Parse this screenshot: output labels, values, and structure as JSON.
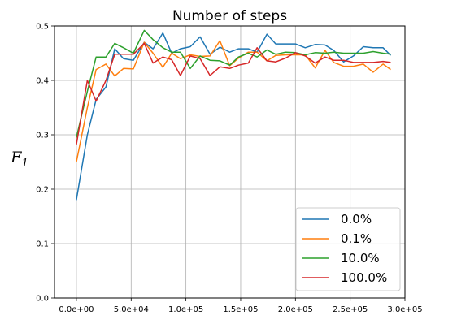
{
  "chart_data": {
    "type": "line",
    "title": "Number of steps",
    "xlabel": "",
    "ylabel": "F",
    "ylabel_sub": "1",
    "xlim": [
      -20000,
      300000
    ],
    "ylim": [
      0.0,
      0.5
    ],
    "grid": true,
    "legend_placement": "bottom-right",
    "x_ticks": [
      0,
      50000,
      100000,
      150000,
      200000,
      250000,
      300000
    ],
    "x_tick_labels": [
      "0.0e+00",
      "5.0e+04",
      "1.0e+05",
      "1.5e+05",
      "2.0e+05",
      "2.5e+05",
      "3.0e+05"
    ],
    "y_ticks": [
      0.0,
      0.1,
      0.2,
      0.3,
      0.4,
      0.5
    ],
    "y_tick_labels": [
      "0.0",
      "0.1",
      "0.2",
      "0.3",
      "0.4",
      "0.5"
    ],
    "x": [
      0,
      10000,
      18000,
      27000,
      35000,
      43000,
      52000,
      62000,
      70000,
      79000,
      87000,
      95000,
      104000,
      113000,
      122000,
      131000,
      140000,
      148000,
      157000,
      165000,
      174000,
      182000,
      191000,
      200000,
      209000,
      218000,
      227000,
      235000,
      244000,
      253000,
      262000,
      271000,
      280000,
      287000
    ],
    "series": [
      {
        "name": "0.0%",
        "color": "#1f77b4",
        "values": [
          0.18,
          0.3,
          0.365,
          0.388,
          0.458,
          0.44,
          0.437,
          0.47,
          0.458,
          0.487,
          0.45,
          0.458,
          0.462,
          0.48,
          0.448,
          0.461,
          0.452,
          0.458,
          0.458,
          0.452,
          0.485,
          0.467,
          0.467,
          0.467,
          0.46,
          0.466,
          0.465,
          0.455,
          0.434,
          0.445,
          0.462,
          0.46,
          0.46,
          0.446
        ]
      },
      {
        "name": "0.1%",
        "color": "#ff7f0e",
        "values": [
          0.25,
          0.35,
          0.42,
          0.43,
          0.408,
          0.422,
          0.421,
          0.47,
          0.45,
          0.424,
          0.45,
          0.44,
          0.447,
          0.444,
          0.445,
          0.473,
          0.427,
          0.441,
          0.452,
          0.452,
          0.436,
          0.446,
          0.447,
          0.447,
          0.447,
          0.423,
          0.455,
          0.433,
          0.426,
          0.426,
          0.43,
          0.415,
          0.43,
          0.42
        ]
      },
      {
        "name": "10.0%",
        "color": "#2ca02c",
        "values": [
          0.295,
          0.38,
          0.443,
          0.443,
          0.468,
          0.46,
          0.45,
          0.492,
          0.475,
          0.46,
          0.452,
          0.452,
          0.422,
          0.445,
          0.437,
          0.436,
          0.428,
          0.443,
          0.45,
          0.443,
          0.456,
          0.448,
          0.452,
          0.451,
          0.447,
          0.451,
          0.45,
          0.452,
          0.45,
          0.45,
          0.45,
          0.453,
          0.45,
          0.448
        ]
      },
      {
        "name": "100.0%",
        "color": "#d62728",
        "values": [
          0.282,
          0.4,
          0.362,
          0.4,
          0.448,
          0.448,
          0.448,
          0.468,
          0.432,
          0.443,
          0.438,
          0.409,
          0.445,
          0.44,
          0.409,
          0.425,
          0.422,
          0.428,
          0.432,
          0.46,
          0.436,
          0.434,
          0.441,
          0.451,
          0.445,
          0.432,
          0.443,
          0.437,
          0.437,
          0.433,
          0.433,
          0.433,
          0.435,
          0.433
        ]
      }
    ]
  }
}
